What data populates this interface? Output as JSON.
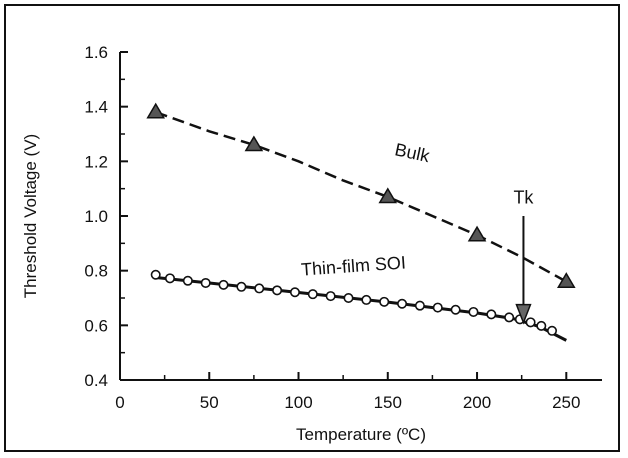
{
  "chart_data": {
    "type": "line",
    "xlabel": "Temperature (ºC)",
    "ylabel": "Threshold Voltage (V)",
    "xlim": [
      0,
      270
    ],
    "ylim": [
      0.4,
      1.6
    ],
    "xticks": [
      0,
      50,
      100,
      150,
      200,
      250
    ],
    "yticks": [
      0.4,
      0.6,
      0.8,
      1.0,
      1.2,
      1.4,
      1.6
    ],
    "xtick_labels": [
      "0",
      "50",
      "100",
      "150",
      "200",
      "250"
    ],
    "ytick_labels": [
      "0.4",
      "0.6",
      "0.8",
      "1.0",
      "1.2",
      "1.4",
      "1.6"
    ],
    "grid": false,
    "series": [
      {
        "name": "Bulk",
        "marker": "triangle",
        "line": "dashed",
        "x": [
          20,
          75,
          150,
          200,
          250
        ],
        "y": [
          1.38,
          1.26,
          1.07,
          0.93,
          0.76
        ],
        "line_x": [
          20,
          50,
          75,
          100,
          125,
          150,
          175,
          200,
          225,
          250
        ],
        "line_y": [
          1.38,
          1.31,
          1.26,
          1.2,
          1.13,
          1.07,
          1.0,
          0.93,
          0.85,
          0.76
        ]
      },
      {
        "name": "Thin-film SOI",
        "marker": "circle-open",
        "line": "solid",
        "x": [
          20,
          28,
          38,
          48,
          58,
          68,
          78,
          88,
          98,
          108,
          118,
          128,
          138,
          148,
          158,
          168,
          178,
          188,
          198,
          208,
          218,
          224,
          230,
          236,
          242
        ],
        "y": [
          0.785,
          0.772,
          0.763,
          0.755,
          0.748,
          0.741,
          0.735,
          0.728,
          0.721,
          0.714,
          0.707,
          0.7,
          0.693,
          0.686,
          0.679,
          0.672,
          0.665,
          0.657,
          0.649,
          0.64,
          0.629,
          0.622,
          0.611,
          0.598,
          0.58
        ],
        "line_x": [
          20,
          50,
          100,
          150,
          200,
          220,
          235,
          250
        ],
        "line_y": [
          0.775,
          0.755,
          0.72,
          0.685,
          0.645,
          0.625,
          0.595,
          0.545
        ]
      }
    ],
    "annotations": [
      {
        "text": "Bulk",
        "x": 163,
        "y": 1.21
      },
      {
        "text": "Thin-film SOI",
        "x": 131,
        "y": 0.795
      },
      {
        "text": "Tk",
        "x": 226,
        "y": 1.045,
        "arrow_from": [
          226,
          1.0
        ],
        "arrow_to": [
          226,
          0.61
        ]
      }
    ]
  }
}
